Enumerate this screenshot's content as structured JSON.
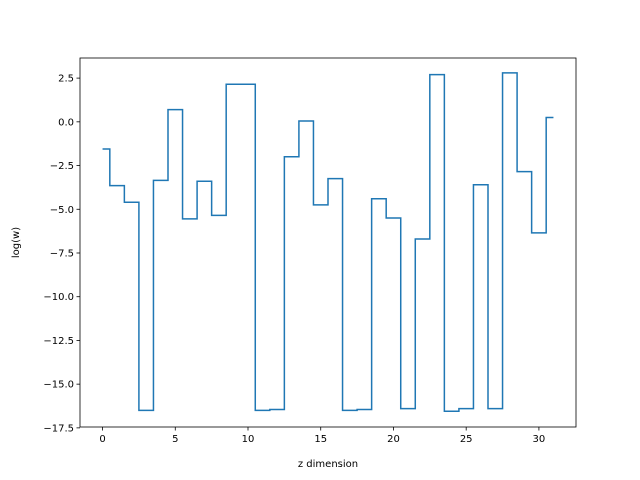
{
  "chart_data": {
    "type": "line",
    "drawstyle": "steps-mid",
    "title": "",
    "xlabel": "z dimension",
    "ylabel": "log(w)",
    "xlim": [
      -1.55,
      32.55
    ],
    "ylim": [
      -17.45,
      3.65
    ],
    "xticks": [
      0,
      5,
      10,
      15,
      20,
      25,
      30
    ],
    "xtick_labels": [
      "0",
      "5",
      "10",
      "15",
      "20",
      "25",
      "30"
    ],
    "yticks": [
      2.5,
      0.0,
      -2.5,
      -5.0,
      -7.5,
      -10.0,
      -12.5,
      -15.0,
      -17.5
    ],
    "ytick_labels": [
      "2.5",
      "0.0",
      "−2.5",
      "−5.0",
      "−7.5",
      "−10.0",
      "−12.5",
      "−15.0",
      "−17.5"
    ],
    "grid": false,
    "color": "#1f77b4",
    "series": [
      {
        "x": [
          0,
          1,
          2,
          3,
          4,
          5,
          6,
          7,
          8,
          9,
          10,
          11,
          12,
          13,
          14,
          15,
          16,
          17,
          18,
          19,
          20,
          21,
          22,
          23,
          24,
          25,
          26,
          27,
          28,
          29,
          30,
          31
        ],
        "values": [
          -1.55,
          -3.65,
          -4.6,
          -16.5,
          -3.35,
          0.7,
          -5.55,
          -3.4,
          -5.35,
          2.15,
          2.15,
          -16.5,
          -16.45,
          -2.0,
          0.05,
          -4.75,
          -3.25,
          -16.5,
          -16.45,
          -4.4,
          -5.5,
          -16.4,
          -6.7,
          2.7,
          -16.55,
          -16.4,
          -3.6,
          -16.4,
          2.8,
          -2.85,
          -6.35,
          0.25
        ]
      }
    ]
  }
}
